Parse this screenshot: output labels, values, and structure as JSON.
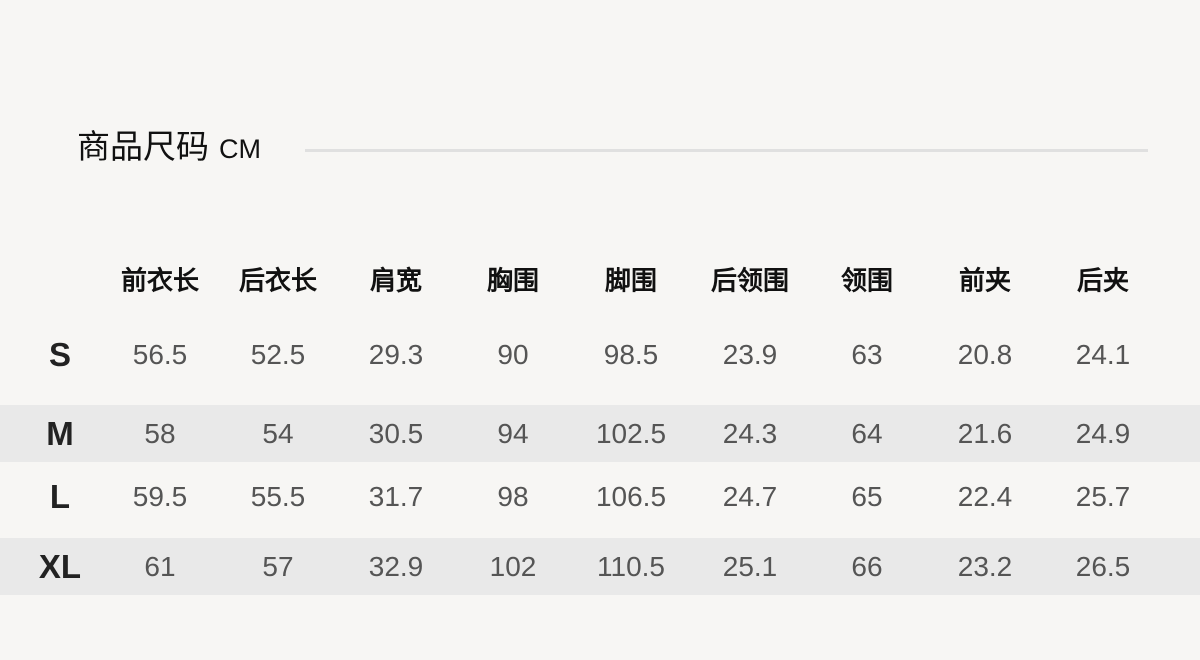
{
  "title": "商品尺码",
  "unit": "CM",
  "headers": [
    "前衣长",
    "后衣长",
    "肩宽",
    "胸围",
    "脚围",
    "后领围",
    "领围",
    "前夹",
    "后夹"
  ],
  "rows": [
    {
      "size": "S",
      "values": [
        "56.5",
        "52.5",
        "29.3",
        "90",
        "98.5",
        "23.9",
        "63",
        "20.8",
        "24.1"
      ]
    },
    {
      "size": "M",
      "values": [
        "58",
        "54",
        "30.5",
        "94",
        "102.5",
        "24.3",
        "64",
        "21.6",
        "24.9"
      ]
    },
    {
      "size": "L",
      "values": [
        "59.5",
        "55.5",
        "31.7",
        "98",
        "106.5",
        "24.7",
        "65",
        "22.4",
        "25.7"
      ]
    },
    {
      "size": "XL",
      "values": [
        "61",
        "57",
        "32.9",
        "102",
        "110.5",
        "25.1",
        "66",
        "23.2",
        "26.5"
      ]
    }
  ],
  "colors": {
    "background": "#f7f6f4",
    "stripe": "#e9e9e9"
  }
}
